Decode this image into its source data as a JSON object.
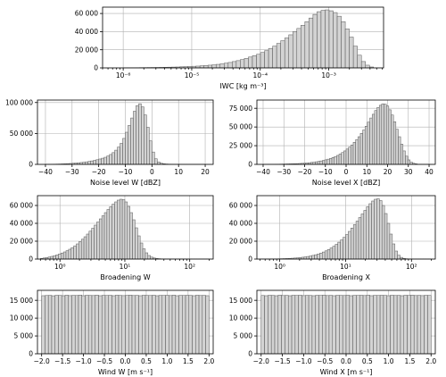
{
  "chart_data": [
    {
      "id": "iwc",
      "type": "bar",
      "xlabel": "IWC [kg m⁻³]",
      "xscale": "log",
      "xlim": [
        5e-07,
        0.0063
      ],
      "ylim": [
        0,
        67000
      ],
      "grid": true,
      "xticks": [
        {
          "value": 1e-06,
          "label": "10⁻⁶"
        },
        {
          "value": 1e-05,
          "label": "10⁻⁵"
        },
        {
          "value": 0.0001,
          "label": "10⁻⁴"
        },
        {
          "value": 0.001,
          "label": "10⁻³"
        }
      ],
      "yticks": [
        {
          "value": 0,
          "label": "0"
        },
        {
          "value": 20000,
          "label": "20 000"
        },
        {
          "value": 40000,
          "label": "40 000"
        },
        {
          "value": 60000,
          "label": "60 000"
        }
      ],
      "x_range": [
        1e-06,
        0.0045
      ],
      "values": [
        100,
        150,
        200,
        250,
        300,
        350,
        400,
        450,
        500,
        600,
        700,
        800,
        900,
        1000,
        1200,
        1400,
        1600,
        1800,
        2000,
        2300,
        2600,
        3000,
        3400,
        3900,
        4500,
        5200,
        6000,
        7000,
        8000,
        9200,
        10500,
        12000,
        13500,
        15000,
        17000,
        19000,
        21500,
        24000,
        27000,
        30000,
        33000,
        36500,
        40000,
        43500,
        47000,
        51000,
        55000,
        59000,
        62000,
        63500,
        64000,
        63000,
        61000,
        57000,
        51000,
        43000,
        34000,
        24000,
        14000,
        7000,
        3000,
        1000
      ]
    },
    {
      "id": "noise-w",
      "type": "bar",
      "xlabel": "Noise level W [dBZ]",
      "xscale": "linear",
      "xlim": [
        -43,
        23
      ],
      "ylim": [
        0,
        104000
      ],
      "grid": true,
      "xticks": [
        {
          "value": -40,
          "label": "−40"
        },
        {
          "value": -30,
          "label": "−30"
        },
        {
          "value": -20,
          "label": "−20"
        },
        {
          "value": -10,
          "label": "−10"
        },
        {
          "value": 0,
          "label": "0"
        },
        {
          "value": 10,
          "label": "10"
        },
        {
          "value": 20,
          "label": "20"
        }
      ],
      "yticks": [
        {
          "value": 0,
          "label": "0"
        },
        {
          "value": 50000,
          "label": "50 000"
        },
        {
          "value": 100000,
          "label": "100 000"
        }
      ],
      "x_range": [
        -40,
        20
      ],
      "values": [
        100,
        200,
        300,
        400,
        500,
        600,
        800,
        1000,
        1200,
        1500,
        1800,
        2200,
        2600,
        3000,
        3500,
        4100,
        4800,
        5600,
        6500,
        7500,
        8700,
        10000,
        11500,
        13500,
        16000,
        19000,
        23000,
        28000,
        34000,
        42000,
        52000,
        63000,
        75000,
        86000,
        95000,
        98000,
        93000,
        80000,
        60000,
        38000,
        20000,
        9000,
        4000,
        2000,
        1000,
        600,
        400,
        300,
        200,
        150,
        100,
        80,
        60,
        40,
        30,
        20,
        10,
        10,
        5,
        5
      ]
    },
    {
      "id": "noise-x",
      "type": "bar",
      "xlabel": "Noise level X [dBZ]",
      "xscale": "linear",
      "xlim": [
        -43,
        43
      ],
      "ylim": [
        0,
        86000
      ],
      "grid": true,
      "xticks": [
        {
          "value": -40,
          "label": "−40"
        },
        {
          "value": -30,
          "label": "−30"
        },
        {
          "value": -20,
          "label": "−20"
        },
        {
          "value": -10,
          "label": "−10"
        },
        {
          "value": 0,
          "label": "0"
        },
        {
          "value": 10,
          "label": "10"
        },
        {
          "value": 20,
          "label": "20"
        },
        {
          "value": 30,
          "label": "30"
        },
        {
          "value": 40,
          "label": "40"
        }
      ],
      "yticks": [
        {
          "value": 0,
          "label": "0"
        },
        {
          "value": 25000,
          "label": "25 000"
        },
        {
          "value": 50000,
          "label": "50 000"
        },
        {
          "value": 75000,
          "label": "75 000"
        }
      ],
      "x_range": [
        -40,
        40
      ],
      "values": [
        50,
        80,
        100,
        150,
        200,
        250,
        300,
        350,
        400,
        500,
        600,
        700,
        800,
        900,
        1000,
        1200,
        1400,
        1600,
        1900,
        2200,
        2600,
        3000,
        3500,
        4000,
        4600,
        5300,
        6100,
        7000,
        8000,
        9200,
        10500,
        12000,
        13800,
        15800,
        18000,
        20500,
        23000,
        26000,
        29500,
        33000,
        37000,
        41500,
        46000,
        51000,
        56500,
        62000,
        67000,
        72000,
        76000,
        79000,
        81000,
        80500,
        78000,
        73000,
        66000,
        57000,
        47000,
        37000,
        27000,
        18000,
        11000,
        6000,
        3000,
        1500,
        700,
        300,
        150,
        80,
        40,
        20
      ]
    },
    {
      "id": "broad-w",
      "type": "bar",
      "xlabel": "Broadening W",
      "xscale": "log",
      "xlim": [
        0.45,
        230
      ],
      "ylim": [
        0,
        71000
      ],
      "grid": true,
      "xticks": [
        {
          "value": 1,
          "label": "10⁰"
        },
        {
          "value": 10,
          "label": "10¹"
        },
        {
          "value": 100,
          "label": "10²"
        }
      ],
      "yticks": [
        {
          "value": 0,
          "label": "0"
        },
        {
          "value": 20000,
          "label": "20 000"
        },
        {
          "value": 40000,
          "label": "40 000"
        },
        {
          "value": 60000,
          "label": "60 000"
        }
      ],
      "x_range": [
        0.5,
        200
      ],
      "values": [
        800,
        1200,
        1700,
        2300,
        3000,
        3800,
        4700,
        5700,
        6800,
        8000,
        9400,
        11000,
        12800,
        14800,
        17000,
        19500,
        22200,
        25000,
        28000,
        31200,
        34500,
        38000,
        41500,
        45000,
        48500,
        52000,
        55500,
        58500,
        61500,
        64000,
        66000,
        67000,
        66500,
        64000,
        59000,
        52000,
        44000,
        35000,
        26000,
        18000,
        11500,
        7000,
        4000,
        2200,
        1200,
        700,
        400,
        250,
        150,
        100,
        70,
        50,
        30,
        20,
        15,
        10,
        8,
        5,
        4,
        3,
        2,
        2,
        1,
        1,
        1,
        1
      ]
    },
    {
      "id": "broad-x",
      "type": "bar",
      "xlabel": "Broadening X",
      "xscale": "log",
      "xlim": [
        0.45,
        230
      ],
      "ylim": [
        0,
        71000
      ],
      "grid": true,
      "xticks": [
        {
          "value": 1,
          "label": "10⁰"
        },
        {
          "value": 10,
          "label": "10¹"
        },
        {
          "value": 100,
          "label": "10²"
        }
      ],
      "yticks": [
        {
          "value": 0,
          "label": "0"
        },
        {
          "value": 20000,
          "label": "20 000"
        },
        {
          "value": 40000,
          "label": "40 000"
        },
        {
          "value": 60000,
          "label": "60 000"
        }
      ],
      "x_range": [
        0.5,
        200
      ],
      "values": [
        30,
        50,
        80,
        110,
        150,
        200,
        260,
        330,
        420,
        520,
        640,
        780,
        950,
        1150,
        1400,
        1700,
        2050,
        2450,
        2900,
        3450,
        4100,
        4850,
        5700,
        6700,
        7900,
        9200,
        10700,
        12400,
        14300,
        16500,
        18900,
        21500,
        24400,
        27500,
        31000,
        34700,
        38500,
        42500,
        46500,
        50500,
        54500,
        58500,
        62000,
        65000,
        67000,
        67500,
        65500,
        60000,
        51000,
        40000,
        28000,
        17000,
        9000,
        4300,
        1900,
        800,
        350,
        150,
        80,
        40,
        20,
        10,
        5,
        3,
        2,
        1
      ]
    },
    {
      "id": "wind-w",
      "type": "bar",
      "xlabel": "Wind W [m s⁻¹]",
      "xscale": "linear",
      "xlim": [
        -2.1,
        2.1
      ],
      "ylim": [
        0,
        17800
      ],
      "grid": true,
      "xticks": [
        {
          "value": -2.0,
          "label": "−2.0"
        },
        {
          "value": -1.5,
          "label": "−1.5"
        },
        {
          "value": -1.0,
          "label": "−1.0"
        },
        {
          "value": -0.5,
          "label": "−0.5"
        },
        {
          "value": 0.0,
          "label": "0.0"
        },
        {
          "value": 0.5,
          "label": "0.5"
        },
        {
          "value": 1.0,
          "label": "1.0"
        },
        {
          "value": 1.5,
          "label": "1.5"
        },
        {
          "value": 2.0,
          "label": "2.0"
        }
      ],
      "yticks": [
        {
          "value": 0,
          "label": "0"
        },
        {
          "value": 5000,
          "label": "5 000"
        },
        {
          "value": 10000,
          "label": "10 000"
        },
        {
          "value": 15000,
          "label": "15 000"
        }
      ],
      "x_range": [
        -2.0,
        2.0
      ],
      "values": [
        16300,
        16350,
        16400,
        16280,
        16420,
        16380,
        16300,
        16450,
        16320,
        16400,
        16350,
        16480,
        16300,
        16420,
        16380,
        16340,
        16460,
        16300,
        16400,
        16360,
        16420,
        16300,
        16440,
        16380,
        16320,
        16400,
        16460,
        16340,
        16400,
        16300,
        16420,
        16380,
        16350,
        16440,
        16300,
        16400,
        16380,
        16420,
        16340,
        16460,
        16300,
        16400,
        16360,
        16420,
        16380,
        16300,
        16440,
        16350,
        16400,
        16300
      ]
    },
    {
      "id": "wind-x",
      "type": "bar",
      "xlabel": "Wind X [m s⁻¹]",
      "xscale": "linear",
      "xlim": [
        -2.1,
        2.1
      ],
      "ylim": [
        0,
        17800
      ],
      "grid": true,
      "xticks": [
        {
          "value": -2.0,
          "label": "−2.0"
        },
        {
          "value": -1.5,
          "label": "−1.5"
        },
        {
          "value": -1.0,
          "label": "−1.0"
        },
        {
          "value": -0.5,
          "label": "−0.5"
        },
        {
          "value": 0.0,
          "label": "0.0"
        },
        {
          "value": 0.5,
          "label": "0.5"
        },
        {
          "value": 1.0,
          "label": "1.0"
        },
        {
          "value": 1.5,
          "label": "1.5"
        },
        {
          "value": 2.0,
          "label": "2.0"
        }
      ],
      "yticks": [
        {
          "value": 0,
          "label": "0"
        },
        {
          "value": 5000,
          "label": "5 000"
        },
        {
          "value": 10000,
          "label": "10 000"
        },
        {
          "value": 15000,
          "label": "15 000"
        }
      ],
      "x_range": [
        -2.0,
        2.0
      ],
      "values": [
        16350,
        16300,
        16420,
        16380,
        16300,
        16460,
        16340,
        16400,
        16300,
        16420,
        16380,
        16440,
        16320,
        16400,
        16360,
        16300,
        16420,
        16380,
        16460,
        16340,
        16400,
        16300,
        16420,
        16380,
        16350,
        16440,
        16300,
        16400,
        16380,
        16420,
        16340,
        16460,
        16300,
        16400,
        16360,
        16420,
        16380,
        16300,
        16440,
        16350,
        16400,
        16300,
        16420,
        16380,
        16460,
        16340,
        16400,
        16320,
        16420,
        16380
      ]
    }
  ]
}
